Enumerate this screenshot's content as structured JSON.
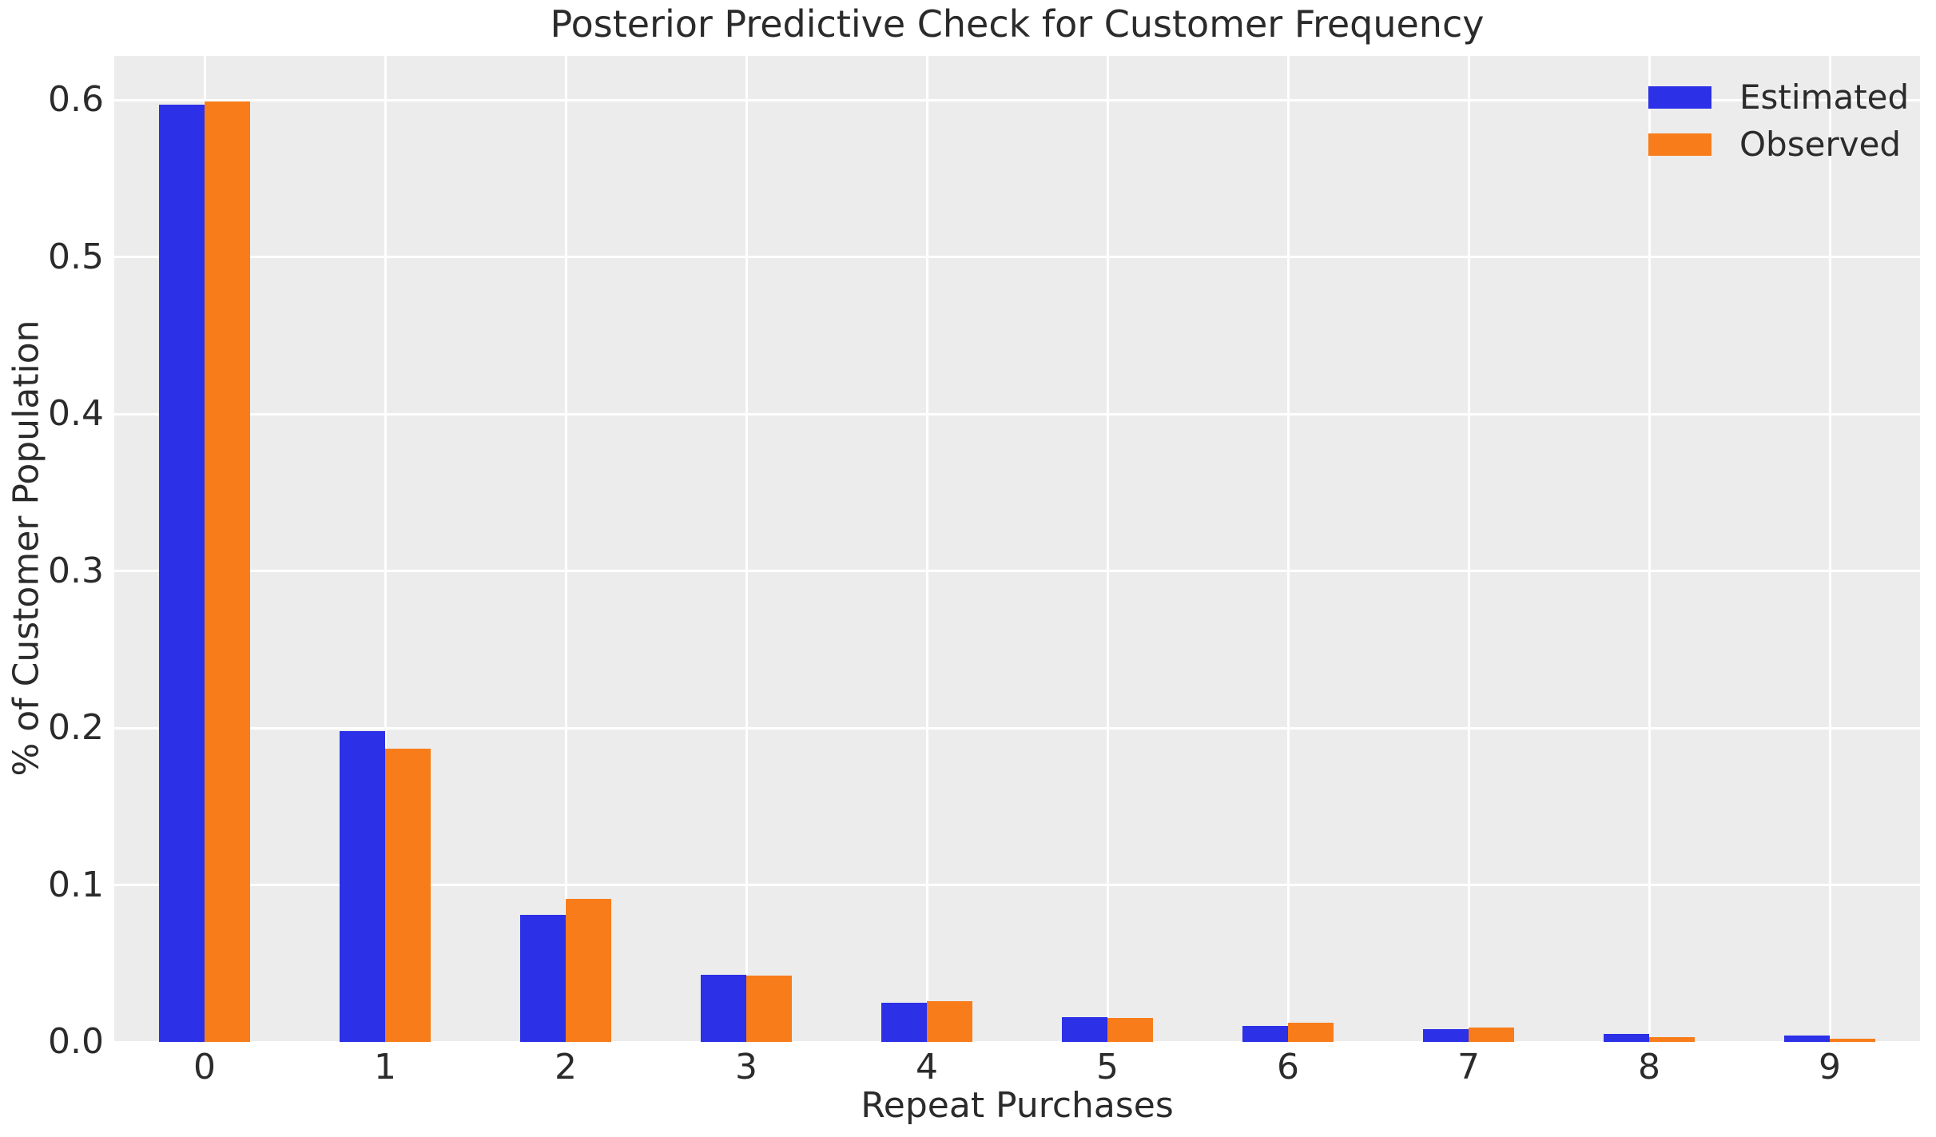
{
  "chart_data": {
    "type": "bar",
    "title": "Posterior Predictive Check for Customer Frequency",
    "xlabel": "Repeat Purchases",
    "ylabel": "% of Customer Population",
    "categories": [
      "0",
      "1",
      "2",
      "3",
      "4",
      "5",
      "6",
      "7",
      "8",
      "9"
    ],
    "series": [
      {
        "name": "Estimated",
        "color": "#2c30e6",
        "values": [
          0.597,
          0.198,
          0.081,
          0.043,
          0.025,
          0.016,
          0.01,
          0.008,
          0.005,
          0.004
        ]
      },
      {
        "name": "Observed",
        "color": "#f87d1a",
        "values": [
          0.599,
          0.187,
          0.091,
          0.042,
          0.026,
          0.0155,
          0.012,
          0.009,
          0.003,
          0.002
        ]
      }
    ],
    "ylim": [
      0,
      0.628
    ],
    "yticks": [
      0.0,
      0.1,
      0.2,
      0.3,
      0.4,
      0.5,
      0.6
    ],
    "ytick_labels": [
      "0.0",
      "0.1",
      "0.2",
      "0.3",
      "0.4",
      "0.5",
      "0.6"
    ],
    "grid": true,
    "legend_position": "upper right",
    "colors": {
      "plot_background": "#ececec",
      "grid": "#ffffff",
      "text": "#2b2b2b",
      "figure_background": "#ffffff"
    }
  }
}
